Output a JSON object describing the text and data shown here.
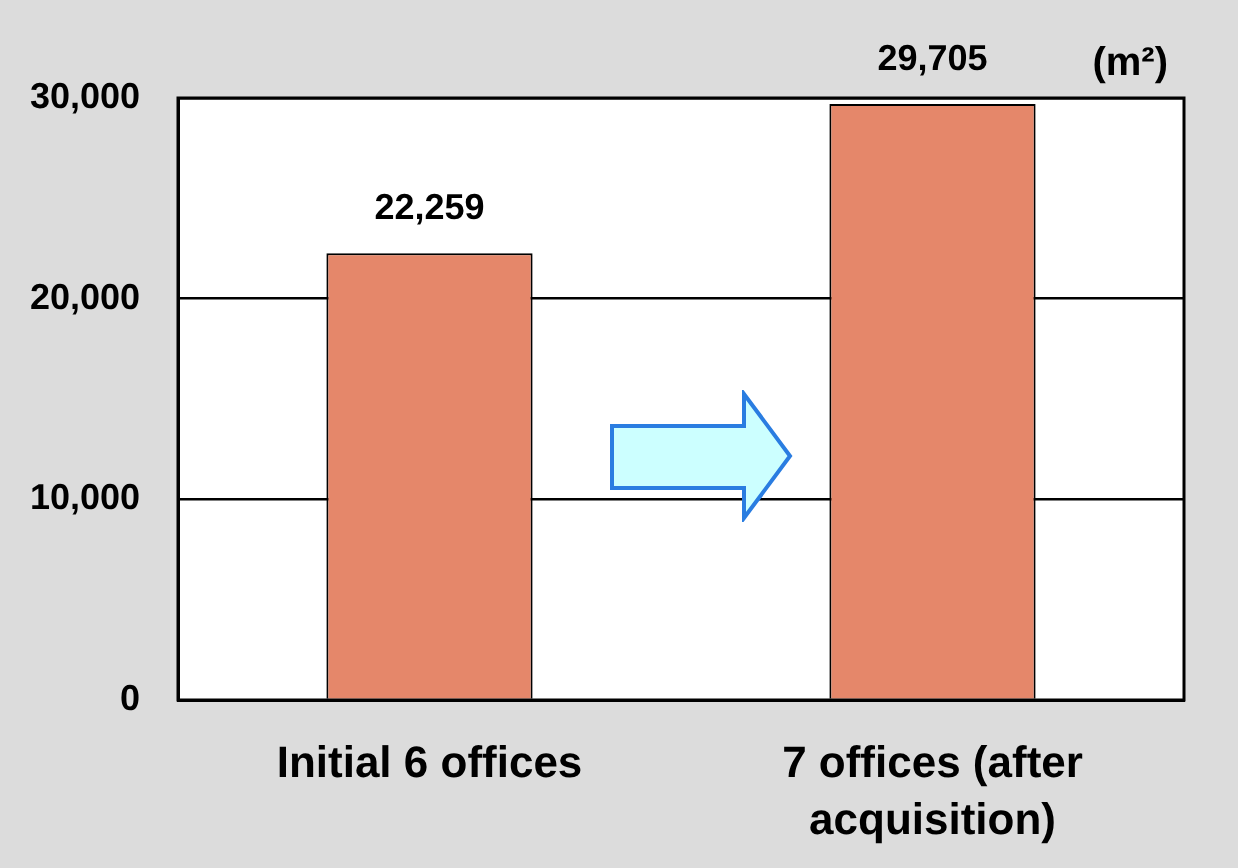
{
  "chart_data": {
    "type": "bar",
    "categories": [
      "Initial 6 offices",
      "7 offices (after acquisition)"
    ],
    "values": [
      22259,
      29705
    ],
    "color": "#e5876a",
    "value_labels": [
      "22,259",
      "29,705"
    ],
    "ylim": [
      0,
      30000
    ],
    "yticks": [
      {
        "value": 0,
        "label": "0"
      },
      {
        "value": 10000,
        "label": "10,000"
      },
      {
        "value": 20000,
        "label": "20,000"
      },
      {
        "value": 30000,
        "label": "30,000"
      }
    ],
    "grid": "y",
    "annotations": [
      "(m²)"
    ]
  }
}
